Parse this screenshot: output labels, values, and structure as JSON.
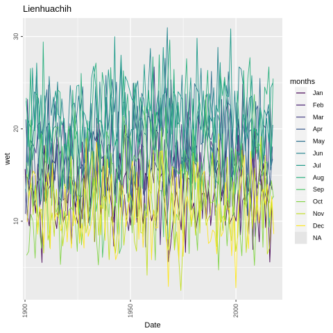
{
  "chart_data": {
    "type": "line",
    "title": "Lienhuachih",
    "xlabel": "Date",
    "ylabel": "wet",
    "x_range": [
      1899,
      2022
    ],
    "y_range": [
      1.5,
      32
    ],
    "x_ticks": [
      {
        "value": 1900,
        "label": "1900"
      },
      {
        "value": 1950,
        "label": "1950"
      },
      {
        "value": 2000,
        "label": "2000"
      }
    ],
    "y_ticks": [
      {
        "value": 10,
        "label": "10"
      },
      {
        "value": 20,
        "label": "20"
      },
      {
        "value": 30,
        "label": "30"
      }
    ],
    "x_start": 1900,
    "x_end": 2017.9,
    "grid": true,
    "legend": {
      "title": "months",
      "placement": "right",
      "entries": [
        {
          "label": "Jan",
          "color": "#440154"
        },
        {
          "label": "Feb",
          "color": "#482173"
        },
        {
          "label": "Mar",
          "color": "#433E85"
        },
        {
          "label": "Apr",
          "color": "#38598C"
        },
        {
          "label": "May",
          "color": "#2D708E"
        },
        {
          "label": "Jun",
          "color": "#25858E"
        },
        {
          "label": "Jul",
          "color": "#1E9B8A"
        },
        {
          "label": "Aug",
          "color": "#2BB07F"
        },
        {
          "label": "Sep",
          "color": "#51C56A"
        },
        {
          "label": "Oct",
          "color": "#85D54A"
        },
        {
          "label": "Nov",
          "color": "#C2DF23"
        },
        {
          "label": "Dec",
          "color": "#FDE725"
        },
        {
          "label": "NA",
          "color": "#E5E5E5"
        }
      ]
    },
    "series": [
      {
        "name": "Jan",
        "color": "#440154",
        "mean": 12.5,
        "spread": 3.2
      },
      {
        "name": "Feb",
        "color": "#482173",
        "mean": 14.5,
        "spread": 3.4
      },
      {
        "name": "Mar",
        "color": "#433E85",
        "mean": 16.5,
        "spread": 3.6
      },
      {
        "name": "Apr",
        "color": "#38598C",
        "mean": 17.5,
        "spread": 3.6
      },
      {
        "name": "May",
        "color": "#2D708E",
        "mean": 19.5,
        "spread": 3.8
      },
      {
        "name": "Jun",
        "color": "#25858E",
        "mean": 21.0,
        "spread": 3.6
      },
      {
        "name": "Jul",
        "color": "#1E9B8A",
        "mean": 22.5,
        "spread": 3.6
      },
      {
        "name": "Aug",
        "color": "#2BB07F",
        "mean": 20.0,
        "spread": 4.0
      },
      {
        "name": "Sep",
        "color": "#51C56A",
        "mean": 15.5,
        "spread": 4.0
      },
      {
        "name": "Oct",
        "color": "#85D54A",
        "mean": 11.5,
        "spread": 3.8
      },
      {
        "name": "Nov",
        "color": "#C2DF23",
        "mean": 11.0,
        "spread": 3.6
      },
      {
        "name": "Dec",
        "color": "#FDE725",
        "mean": 11.5,
        "spread": 3.4
      }
    ]
  }
}
